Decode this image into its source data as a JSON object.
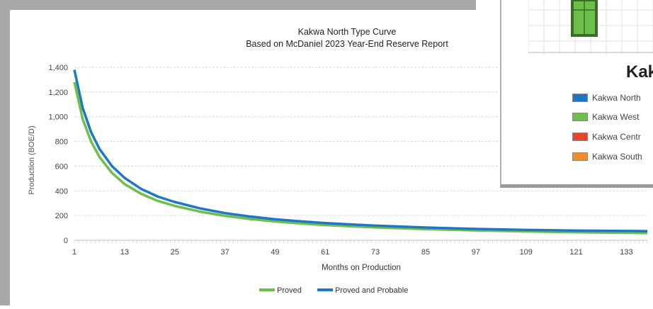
{
  "chart_data": {
    "type": "line",
    "title": "Kakwa North Type Curve",
    "subtitle": "Based on McDaniel 2023 Year-End Reserve Report",
    "xlabel": "Months on Production",
    "ylabel": "Production (BOE/D)",
    "xlim": [
      1,
      138
    ],
    "ylim": [
      0,
      1400
    ],
    "x_ticks": [
      "1",
      "13",
      "25",
      "37",
      "49",
      "61",
      "73",
      "85",
      "97",
      "109",
      "121",
      "133"
    ],
    "y_ticks": [
      "0",
      "200",
      "400",
      "600",
      "800",
      "1,000",
      "1,200",
      "1,400"
    ],
    "grid": "horizontal",
    "legend_position": "bottom",
    "x": [
      1,
      3,
      5,
      7,
      10,
      13,
      17,
      21,
      25,
      31,
      37,
      43,
      49,
      55,
      61,
      73,
      85,
      97,
      109,
      121,
      133,
      138
    ],
    "series": [
      {
        "name": "Proved",
        "color": "#6cc04a",
        "values": [
          1280,
          980,
          800,
          675,
          545,
          455,
          375,
          318,
          278,
          232,
          198,
          172,
          152,
          136,
          123,
          104,
          90,
          80,
          72,
          65,
          60,
          58
        ]
      },
      {
        "name": "Proved and Probable",
        "color": "#1f77c4",
        "values": [
          1380,
          1070,
          875,
          740,
          600,
          505,
          415,
          353,
          310,
          258,
          220,
          192,
          170,
          153,
          139,
          118,
          103,
          92,
          84,
          78,
          75,
          74
        ]
      }
    ]
  },
  "inset": {
    "title": "Kak",
    "legend": [
      {
        "label": "Kakwa North",
        "color": "#1f77c4"
      },
      {
        "label": "Kakwa West",
        "color": "#6cc04a"
      },
      {
        "label": "Kakwa Centr",
        "color": "#e8462a"
      },
      {
        "label": "Kakwa South",
        "color": "#f28c28"
      }
    ],
    "map_block_color": "#6cc04a"
  }
}
